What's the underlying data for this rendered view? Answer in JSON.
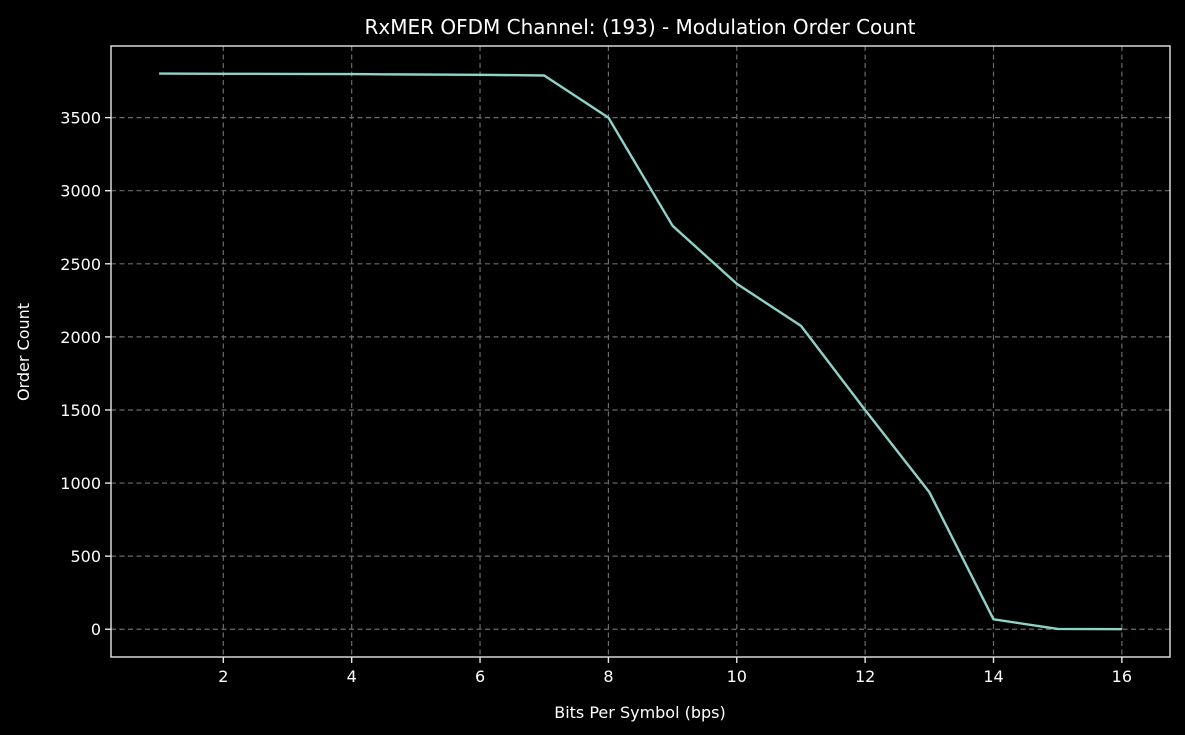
{
  "chart_data": {
    "type": "line",
    "title": "RxMER OFDM Channel: (193) - Modulation Order Count",
    "xlabel": "Bits Per Symbol (bps)",
    "ylabel": "Order Count",
    "x": [
      1,
      2,
      3,
      4,
      5,
      6,
      7,
      8,
      9,
      10,
      11,
      12,
      13,
      14,
      15,
      16
    ],
    "series": [
      {
        "name": "Order Count",
        "color": "#8dd3c7",
        "values": [
          3801,
          3800,
          3799,
          3798,
          3795,
          3793,
          3788,
          3500,
          2760,
          2363,
          2075,
          1500,
          938,
          68,
          2,
          0
        ]
      }
    ],
    "xlim": [
      0.25,
      16.75
    ],
    "ylim": [
      -190,
      3990
    ],
    "xticks": [
      2,
      4,
      6,
      8,
      10,
      12,
      14,
      16
    ],
    "yticks": [
      0,
      500,
      1000,
      1500,
      2000,
      2500,
      3000,
      3500
    ],
    "grid": true,
    "legend": "none",
    "background": "#000000"
  }
}
